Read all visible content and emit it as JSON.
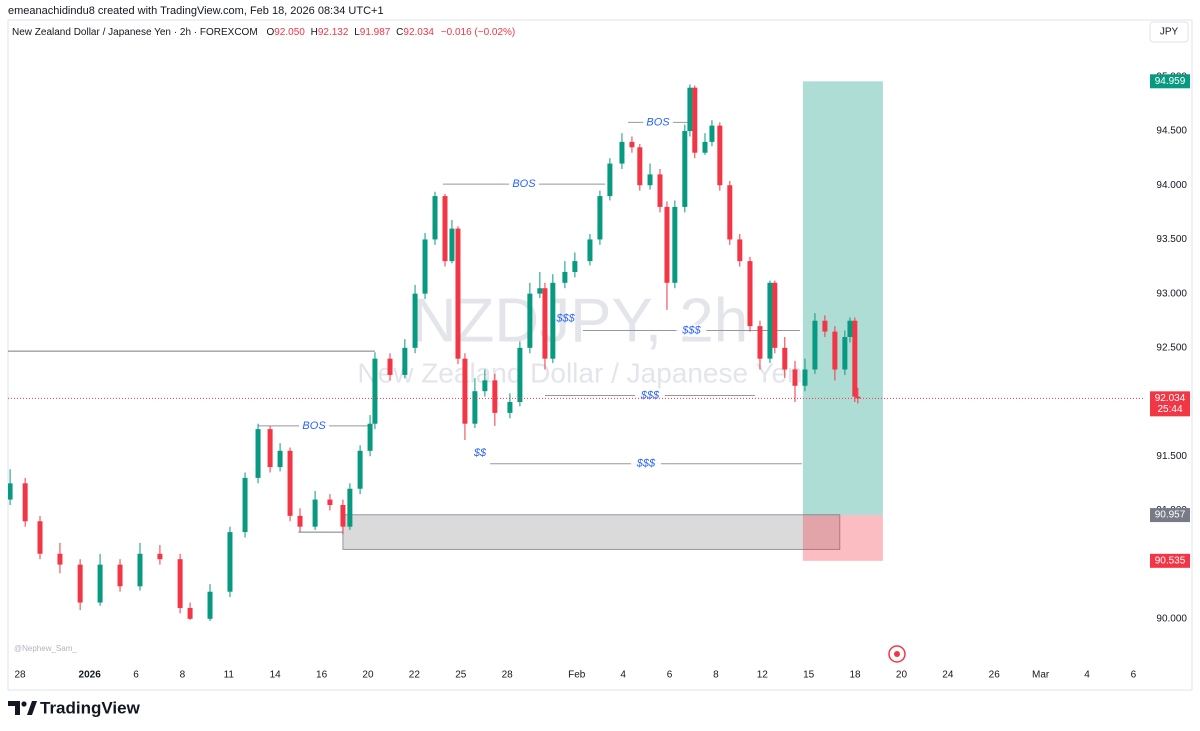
{
  "header": {
    "credit": "emeanachidindu8 created with TradingView.com, Feb 18, 2026 08:34 UTC+1",
    "symbol": "New Zealand Dollar / Japanese Yen · 2h · FOREXCOM",
    "ohlc": [
      {
        "k": "O",
        "v": "92.050"
      },
      {
        "k": "H",
        "v": "92.132"
      },
      {
        "k": "L",
        "v": "91.987"
      },
      {
        "k": "C",
        "v": "92.034"
      }
    ],
    "change": "−0.016 (−0.02%)",
    "currency": "JPY"
  },
  "watermark": {
    "symbol": "NZDJPY, 2h",
    "name": "New Zealand Dollar / Japanese Yen"
  },
  "author": "@Nephew_Sam_",
  "brand": "TradingView",
  "chart_data": {
    "type": "candlestick",
    "up_color": "#089981",
    "down_color": "#f23645",
    "grid": false,
    "xlim": [
      -0.52,
      48.5
    ],
    "ylim": [
      89.62,
      95.34
    ],
    "xticks": [
      {
        "value": 0,
        "label": "28"
      },
      {
        "value": 3,
        "label": "2026"
      },
      {
        "value": 5,
        "label": "6"
      },
      {
        "value": 7,
        "label": "8"
      },
      {
        "value": 9,
        "label": "11"
      },
      {
        "value": 11,
        "label": "14"
      },
      {
        "value": 13,
        "label": "16"
      },
      {
        "value": 15,
        "label": "20"
      },
      {
        "value": 17,
        "label": "22"
      },
      {
        "value": 19,
        "label": "25"
      },
      {
        "value": 21,
        "label": "28"
      },
      {
        "value": 24,
        "label": "Feb"
      },
      {
        "value": 26,
        "label": "4"
      },
      {
        "value": 28,
        "label": "6"
      },
      {
        "value": 30,
        "label": "8"
      },
      {
        "value": 32,
        "label": "12"
      },
      {
        "value": 34,
        "label": "15"
      },
      {
        "value": 36,
        "label": "18"
      },
      {
        "value": 38,
        "label": "20"
      },
      {
        "value": 40,
        "label": "24"
      },
      {
        "value": 42,
        "label": "26"
      },
      {
        "value": 44,
        "label": "Mar"
      },
      {
        "value": 46,
        "label": "4"
      },
      {
        "value": 48,
        "label": "6"
      }
    ],
    "yticks": [
      {
        "value": 90,
        "label": "90.000"
      },
      {
        "value": 90.5,
        "label": "90.500"
      },
      {
        "value": 91,
        "label": "91.000"
      },
      {
        "value": 91.5,
        "label": "91.500"
      },
      {
        "value": 92,
        "label": "92.000"
      },
      {
        "value": 92.5,
        "label": "92.500"
      },
      {
        "value": 93,
        "label": "93.000"
      },
      {
        "value": 93.5,
        "label": "93.500"
      },
      {
        "value": 94,
        "label": "94.000"
      },
      {
        "value": 94.5,
        "label": "94.500"
      },
      {
        "value": 95,
        "label": "95.000"
      }
    ],
    "x": [
      -0.43,
      0.22,
      0.86,
      1.72,
      2.59,
      3.45,
      4.31,
      5.17,
      6.03,
      6.9,
      7.33,
      8.19,
      9.05,
      9.7,
      10.26,
      10.78,
      11.21,
      11.64,
      12.07,
      12.72,
      13.36,
      13.92,
      14.22,
      14.66,
      15.09,
      15.3,
      15.95,
      16.59,
      17.03,
      17.46,
      17.89,
      18.32,
      18.62,
      18.88,
      19.18,
      19.61,
      20.04,
      20.47,
      21.12,
      21.55,
      21.98,
      22.41,
      22.63,
      22.97,
      23.49,
      23.92,
      24.57,
      25.0,
      25.43,
      25.95,
      26.38,
      26.72,
      27.16,
      27.59,
      27.89,
      28.23,
      28.66,
      28.88,
      29.09,
      29.53,
      29.83,
      30.17,
      30.6,
      31.03,
      31.47,
      31.9,
      32.33,
      32.54,
      32.97,
      33.41,
      33.84,
      34.27,
      34.7,
      35.13,
      35.56,
      35.78,
      35.99,
      36.12
    ],
    "open": [
      91.1,
      91.25,
      90.9,
      90.6,
      90.5,
      90.15,
      90.5,
      90.3,
      90.6,
      90.55,
      90.1,
      90.0,
      90.25,
      90.8,
      91.3,
      91.75,
      91.4,
      91.55,
      90.95,
      90.85,
      91.1,
      91.05,
      90.85,
      91.2,
      91.55,
      91.8,
      92.4,
      92.25,
      92.5,
      93.0,
      93.5,
      93.9,
      93.3,
      93.6,
      92.4,
      91.8,
      92.1,
      92.2,
      91.9,
      92.0,
      92.5,
      93.0,
      93.05,
      92.4,
      93.1,
      93.2,
      93.3,
      93.5,
      93.9,
      94.2,
      94.4,
      94.35,
      94.0,
      94.1,
      93.8,
      93.1,
      93.8,
      94.5,
      94.9,
      94.3,
      94.4,
      94.55,
      94.0,
      93.5,
      93.3,
      92.7,
      92.4,
      93.1,
      92.5,
      92.3,
      92.15,
      92.3,
      92.75,
      92.65,
      92.3,
      92.6,
      92.75,
      92.05
    ],
    "high": [
      91.38,
      91.3,
      90.95,
      90.7,
      90.55,
      90.6,
      90.55,
      90.7,
      90.68,
      90.6,
      90.15,
      90.32,
      90.85,
      91.35,
      91.8,
      91.78,
      91.62,
      91.58,
      91.02,
      91.18,
      91.15,
      91.1,
      91.25,
      91.6,
      91.88,
      92.46,
      92.45,
      92.58,
      93.08,
      93.56,
      93.94,
      93.92,
      93.68,
      93.62,
      92.45,
      92.22,
      92.3,
      92.26,
      92.08,
      92.56,
      93.1,
      93.2,
      93.1,
      93.18,
      93.3,
      93.38,
      93.55,
      93.95,
      94.25,
      94.48,
      94.45,
      94.38,
      94.2,
      94.15,
      93.85,
      93.86,
      94.56,
      94.93,
      94.92,
      94.48,
      94.6,
      94.58,
      94.04,
      93.55,
      93.34,
      92.75,
      93.12,
      93.12,
      92.6,
      92.38,
      92.4,
      92.82,
      92.8,
      92.7,
      92.66,
      92.78,
      92.78,
      92.132
    ],
    "low": [
      91.05,
      90.85,
      90.55,
      90.42,
      90.08,
      90.12,
      90.25,
      90.26,
      90.5,
      90.05,
      89.99,
      89.98,
      90.2,
      90.75,
      91.25,
      91.35,
      91.36,
      90.9,
      90.8,
      90.82,
      91.0,
      90.78,
      90.82,
      91.15,
      91.5,
      91.75,
      92.2,
      92.22,
      92.45,
      92.95,
      93.45,
      93.25,
      93.28,
      92.35,
      91.65,
      91.76,
      92.05,
      91.78,
      91.85,
      91.96,
      92.45,
      92.96,
      92.3,
      92.36,
      93.05,
      93.15,
      93.26,
      93.45,
      93.86,
      94.15,
      94.3,
      93.95,
      93.96,
      93.75,
      92.85,
      93.05,
      93.75,
      94.45,
      94.25,
      94.28,
      94.36,
      93.95,
      93.45,
      93.25,
      92.65,
      92.3,
      92.36,
      92.45,
      92.22,
      92.0,
      92.1,
      92.26,
      92.6,
      92.2,
      92.25,
      92.55,
      92.0,
      91.987
    ],
    "close": [
      91.25,
      90.9,
      90.6,
      90.5,
      90.15,
      90.5,
      90.3,
      90.6,
      90.55,
      90.1,
      90.0,
      90.25,
      90.8,
      91.3,
      91.75,
      91.4,
      91.55,
      90.95,
      90.85,
      91.1,
      91.05,
      90.85,
      91.2,
      91.55,
      91.8,
      92.4,
      92.25,
      92.5,
      93.0,
      93.5,
      93.9,
      93.3,
      93.6,
      92.4,
      91.8,
      92.1,
      92.2,
      91.9,
      92.0,
      92.5,
      93.0,
      93.05,
      92.4,
      93.1,
      93.2,
      93.3,
      93.5,
      93.9,
      94.2,
      94.4,
      94.35,
      94.0,
      94.1,
      93.8,
      93.1,
      93.8,
      94.5,
      94.9,
      94.3,
      94.4,
      94.55,
      94.0,
      93.5,
      93.3,
      92.7,
      92.4,
      93.1,
      92.5,
      92.3,
      92.15,
      92.3,
      92.75,
      92.65,
      92.3,
      92.6,
      92.75,
      92.05,
      92.034
    ],
    "countdown": "25:44",
    "levels": [
      {
        "price": 92.47,
        "x": [
          -0.52,
          15.3
        ]
      },
      {
        "price": 90.8,
        "x": [
          12.0,
          13.92
        ]
      }
    ],
    "annotations": [
      {
        "label": "BOS",
        "price": 91.78,
        "x": [
          10.26,
          15.09
        ]
      },
      {
        "label": "BOS",
        "price": 94.01,
        "x": [
          18.23,
          25.22
        ]
      },
      {
        "label": "BOS",
        "price": 94.58,
        "x": [
          26.21,
          28.8
        ]
      },
      {
        "label": "$$$",
        "price": 92.66,
        "x": [
          24.27,
          33.62
        ]
      },
      {
        "label": "$$$",
        "price": 92.06,
        "x": [
          22.63,
          31.68
        ]
      },
      {
        "label": "$$$",
        "price": 91.43,
        "x": [
          20.26,
          33.71
        ]
      }
    ],
    "notes": [
      {
        "label": "$$$",
        "price": 92.77,
        "x": 23.52
      },
      {
        "label": "$$",
        "price": 91.53,
        "x": 19.83
      }
    ],
    "zone": {
      "x": [
        13.92,
        35.34
      ],
      "price": [
        90.96,
        90.64
      ]
    },
    "position": {
      "x": [
        33.75,
        37.2
      ],
      "target": 94.959,
      "entry": 90.957,
      "stop": 90.535
    }
  }
}
